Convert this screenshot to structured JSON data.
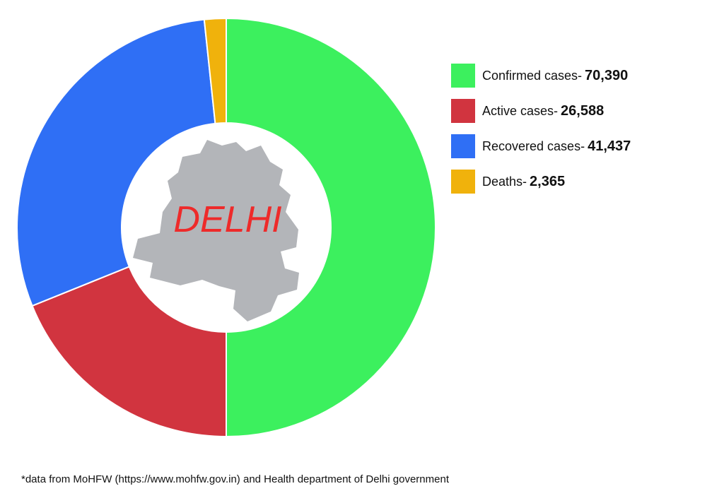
{
  "chart_data": {
    "type": "pie",
    "variant": "donut",
    "center_label": "DELHI",
    "center_label_color": "#ee2a2a",
    "map_color": "#b3b5b9",
    "slices": [
      {
        "name": "Confirmed cases",
        "label": "Confirmed cases-",
        "value": 70390,
        "value_text": "70,390",
        "color": "#3cf05e"
      },
      {
        "name": "Active cases",
        "label": "Active cases-",
        "value": 26588,
        "value_text": "26,588",
        "color": "#d1343f"
      },
      {
        "name": "Recovered cases",
        "label": "Recovered cases-",
        "value": 41437,
        "value_text": "41,437",
        "color": "#2f6ff5"
      },
      {
        "name": "Deaths",
        "label": "Deaths-",
        "value": 2365,
        "value_text": "2,365",
        "color": "#f0b20c"
      }
    ],
    "legend_position": "right"
  },
  "footnote": "*data from MoHFW (https://www.mohfw.gov.in) and Health department of Delhi government"
}
